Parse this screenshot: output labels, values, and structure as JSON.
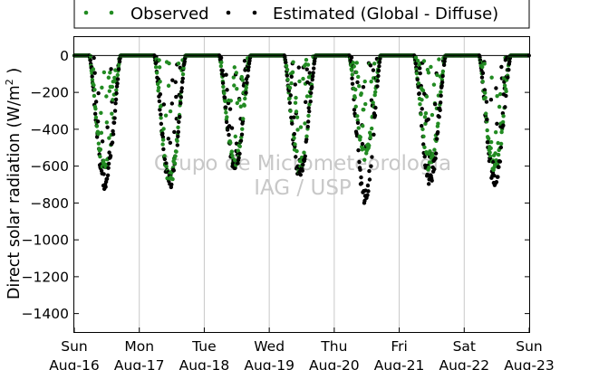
{
  "chart_data": {
    "type": "scatter",
    "xlabel": "",
    "ylabel": "Direct solar radiation (W/m²)",
    "ylabel_parts": [
      "Direct solar radiation (W/m",
      "2",
      " )"
    ],
    "ylim": [
      -1500,
      100
    ],
    "xlim": [
      "2020-08-16",
      "2020-08-23"
    ],
    "yticks": [
      0,
      -200,
      -400,
      -600,
      -800,
      -1000,
      -1200,
      -1400
    ],
    "xticks": [
      {
        "day": "Sun",
        "date": "Aug-16"
      },
      {
        "day": "Mon",
        "date": "Aug-17"
      },
      {
        "day": "Tue",
        "date": "Aug-18"
      },
      {
        "day": "Wed",
        "date": "Aug-19"
      },
      {
        "day": "Thu",
        "date": "Aug-20"
      },
      {
        "day": "Fri",
        "date": "Aug-21"
      },
      {
        "day": "Sat",
        "date": "Aug-22"
      },
      {
        "day": "Sun",
        "date": "Aug-23"
      }
    ],
    "grid": "vertical",
    "zero_line": true,
    "legend_position": "top",
    "watermark": [
      "Grupo de Micrometeorologia",
      "IAG / USP"
    ],
    "series": [
      {
        "name": "Observed",
        "color": "#228b22",
        "daily_peak": [
          -640,
          -700,
          -600,
          -630,
          -560,
          -620,
          -640
        ]
      },
      {
        "name": "Estimated (Global - Diffuse)",
        "color": "#000000",
        "daily_peak": [
          -720,
          -720,
          -620,
          -660,
          -790,
          -690,
          -715
        ]
      }
    ]
  }
}
